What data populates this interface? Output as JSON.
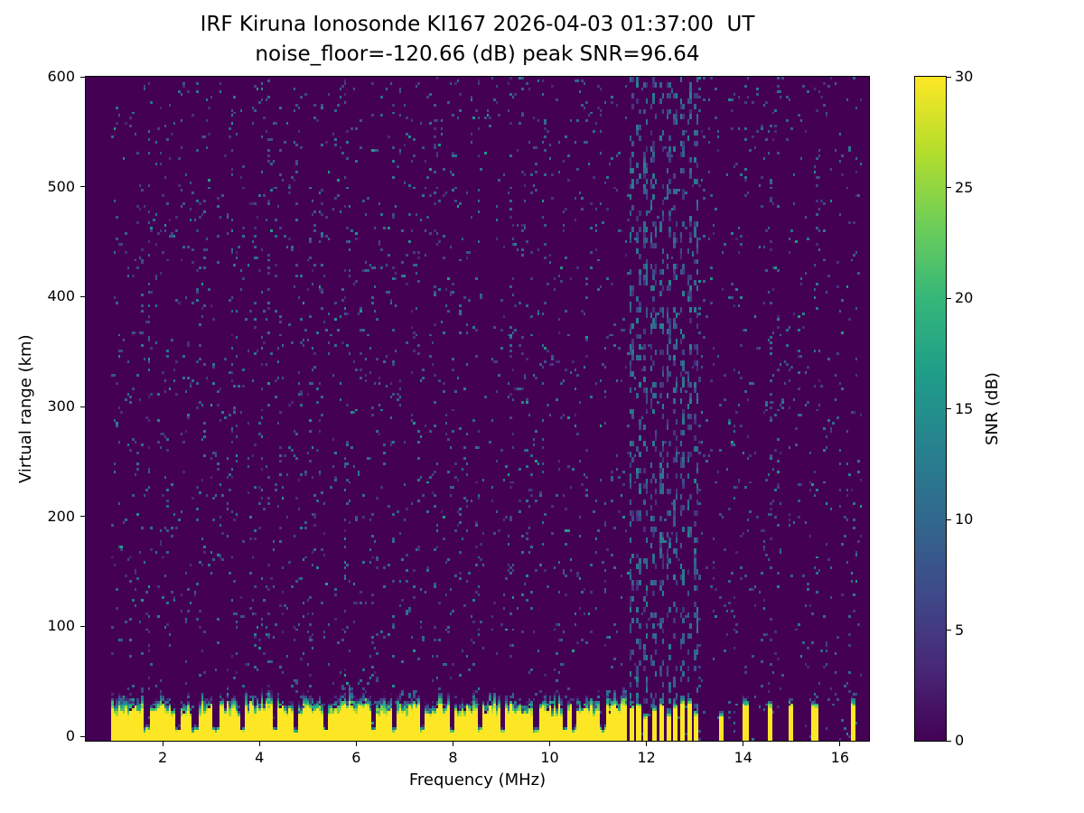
{
  "chart_data": {
    "type": "heatmap",
    "title": "IRF Kiruna Ionosonde KI167 2026-04-03 01:37:00  UT",
    "subtitle": "noise_floor=-120.66 (dB) peak SNR=96.64",
    "xlabel": "Frequency (MHz)",
    "ylabel": "Virtual range (km)",
    "colorbar_label": "SNR (dB)",
    "station": "IRF Kiruna Ionosonde KI167",
    "timestamp_ut": "2026-04-03 01:37:00",
    "noise_floor_db": -120.66,
    "peak_snr_db": 96.64,
    "x_ticks": [
      2,
      4,
      6,
      8,
      10,
      12,
      14,
      16
    ],
    "y_ticks": [
      0,
      100,
      200,
      300,
      400,
      500,
      600
    ],
    "colorbar_ticks": [
      0,
      5,
      10,
      15,
      20,
      25,
      30
    ],
    "x_domain": [
      0.41,
      16.6
    ],
    "y_domain": [
      -4,
      600
    ],
    "value_domain": [
      0,
      30
    ],
    "colormap": "viridis",
    "colormap_stops": [
      "#440154",
      "#482878",
      "#3e4a89",
      "#31688e",
      "#26828e",
      "#1f9e89",
      "#35b779",
      "#6ece58",
      "#b5de2b",
      "#fde725"
    ],
    "colors": {
      "background": "#ffffff",
      "text": "#000000"
    },
    "features": {
      "sweep_freq_range_mhz": [
        0.95,
        16.45
      ],
      "ground_clutter": {
        "freq_range_mhz": [
          0.95,
          11.62
        ],
        "solid_top_km_range": [
          17,
          28
        ],
        "speckle_top_km_range": [
          26,
          46
        ],
        "notch_freqs_mhz": [
          1.67,
          2.3,
          2.67,
          3.1,
          3.64,
          4.3,
          4.75,
          5.35,
          6.35,
          6.8,
          7.38,
          8.0,
          8.55,
          9.02,
          9.72,
          10.32,
          10.52,
          11.1
        ]
      },
      "interference_stripes_mhz": [
        11.7,
        11.85,
        12.0,
        12.15,
        12.3,
        12.45,
        12.6,
        12.75,
        12.9,
        13.05,
        13.55,
        14.05,
        14.55,
        14.97,
        15.48,
        16.28
      ],
      "noisy_columns_mhz": [
        11.7,
        11.85,
        12.0,
        12.15,
        12.3,
        12.45,
        12.6,
        12.75,
        12.9,
        13.05
      ],
      "background_speckle": "sparse 3-14 dB speckle across all virtual ranges"
    }
  }
}
